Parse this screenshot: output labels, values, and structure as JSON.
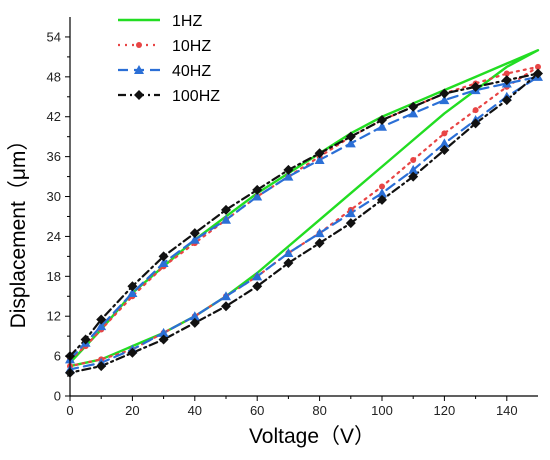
{
  "chart_data": {
    "type": "line",
    "title": "",
    "xlabel": "Voltage（V）",
    "ylabel": "Displacement（μm）",
    "xlim": [
      0,
      150
    ],
    "ylim": [
      0,
      57
    ],
    "xticks": [
      0,
      20,
      40,
      60,
      80,
      100,
      120,
      140
    ],
    "yticks": [
      0,
      6,
      12,
      18,
      24,
      30,
      36,
      42,
      48,
      54
    ],
    "grid": false,
    "legend_position": "top-left",
    "series": [
      {
        "name": "1HZ",
        "color": "#22dd22",
        "style": "solid",
        "marker": "none",
        "x": [
          0,
          5,
          10,
          20,
          30,
          40,
          50,
          60,
          70,
          80,
          90,
          100,
          110,
          120,
          130,
          140,
          150,
          140,
          130,
          120,
          110,
          100,
          90,
          80,
          70,
          60,
          50,
          40,
          30,
          20,
          10,
          0
        ],
        "y": [
          5,
          7.5,
          10,
          15.5,
          19.5,
          23.5,
          27,
          30.5,
          33.5,
          36.5,
          39.5,
          42,
          44,
          46,
          48,
          50,
          52,
          49.5,
          46,
          42.5,
          38.5,
          34.5,
          30.5,
          26.5,
          22.5,
          18.5,
          15,
          12,
          9.5,
          7.5,
          5.5,
          4.5
        ]
      },
      {
        "name": "10HZ",
        "color": "#e84545",
        "style": "dotted",
        "marker": "circle",
        "x": [
          0,
          5,
          10,
          20,
          30,
          40,
          50,
          60,
          70,
          80,
          90,
          100,
          110,
          120,
          130,
          140,
          150,
          140,
          130,
          120,
          110,
          100,
          90,
          80,
          70,
          60,
          50,
          40,
          30,
          20,
          10,
          0
        ],
        "y": [
          5.5,
          7.5,
          10,
          15,
          19.5,
          23,
          26.5,
          30,
          33,
          36,
          39,
          41.5,
          43.5,
          45.5,
          47,
          48.5,
          49.5,
          46.5,
          43,
          39.5,
          35.5,
          31.5,
          28,
          24.5,
          21.5,
          18,
          15,
          12,
          9.5,
          7,
          5.5,
          4.5
        ]
      },
      {
        "name": "40HZ",
        "color": "#2b6fd6",
        "style": "dashed",
        "marker": "triangle",
        "x": [
          0,
          5,
          10,
          20,
          30,
          40,
          50,
          60,
          70,
          80,
          90,
          100,
          110,
          120,
          130,
          140,
          150,
          140,
          130,
          120,
          110,
          100,
          90,
          80,
          70,
          60,
          50,
          40,
          30,
          20,
          10,
          0
        ],
        "y": [
          5.5,
          8,
          10.5,
          15.5,
          20,
          23.5,
          26.5,
          30,
          33,
          35.5,
          38,
          40.5,
          42.5,
          44.5,
          46,
          47,
          48,
          45,
          41.5,
          38,
          34,
          30.5,
          27.5,
          24.5,
          21.5,
          18,
          15,
          12,
          9.5,
          7,
          5,
          4
        ]
      },
      {
        "name": "100HZ",
        "color": "#111111",
        "style": "dashdot",
        "marker": "diamond",
        "x": [
          0,
          5,
          10,
          20,
          30,
          40,
          50,
          60,
          70,
          80,
          90,
          100,
          110,
          120,
          130,
          140,
          150,
          140,
          130,
          120,
          110,
          100,
          90,
          80,
          70,
          60,
          50,
          40,
          30,
          20,
          10,
          0
        ],
        "y": [
          6,
          8.5,
          11.5,
          16.5,
          21,
          24.5,
          28,
          31,
          34,
          36.5,
          39,
          41.5,
          43.5,
          45.5,
          46.5,
          47.5,
          48.5,
          44.5,
          41,
          37,
          33,
          29.5,
          26,
          23,
          20,
          16.5,
          13.5,
          11,
          8.5,
          6.5,
          4.5,
          3.5
        ]
      }
    ]
  }
}
